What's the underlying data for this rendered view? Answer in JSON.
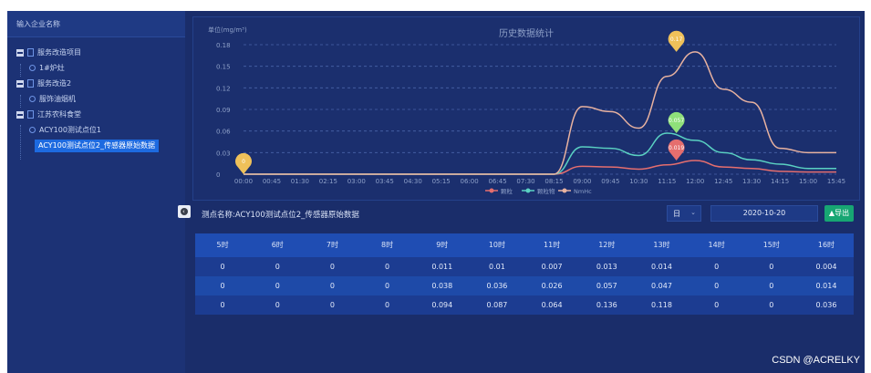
{
  "sidebar": {
    "search_placeholder": "输入企业名称",
    "tree": [
      {
        "label": "服务改造项目"
      },
      {
        "label": "1#炉灶"
      },
      {
        "label": "服务改造2"
      },
      {
        "label": "服饰油烟机"
      },
      {
        "label": "江苏农科食堂"
      },
      {
        "label": "ACY100测试点位1"
      },
      {
        "label": "ACY100测试点位2_传感器原始数据"
      }
    ]
  },
  "chart": {
    "title": "历史数据统计",
    "unit": "单位(mg/m³)",
    "legend": [
      "颗粒",
      "颗粒物",
      "NmHc"
    ],
    "colors": {
      "particle": "#e56e6e",
      "pm": "#5ad1c2",
      "nmhc": "#e8b2a0"
    }
  },
  "chart_data": {
    "type": "line",
    "x": [
      "00:00",
      "00:45",
      "01:30",
      "02:15",
      "03:00",
      "03:45",
      "04:30",
      "05:15",
      "06:00",
      "06:45",
      "07:30",
      "08:15",
      "09:00",
      "09:45",
      "10:30",
      "11:15",
      "12:00",
      "12:45",
      "13:30",
      "14:15",
      "15:00",
      "15:45"
    ],
    "ylim": [
      0,
      0.18
    ],
    "yticks": [
      "0",
      "0.03",
      "0.06",
      "0.09",
      "0.12",
      "0.15",
      "0.18"
    ],
    "series": [
      {
        "name": "颗粒",
        "values": [
          0,
          0,
          0,
          0,
          0,
          0,
          0,
          0,
          0,
          0,
          0,
          0,
          0.011,
          0.01,
          0.007,
          0.013,
          0.019,
          0.01,
          0.008,
          0.004,
          0.003,
          0.003
        ]
      },
      {
        "name": "颗粒物",
        "values": [
          0,
          0,
          0,
          0,
          0,
          0,
          0,
          0,
          0,
          0,
          0,
          0,
          0.038,
          0.036,
          0.026,
          0.057,
          0.047,
          0.03,
          0.02,
          0.014,
          0.008,
          0.008
        ]
      },
      {
        "name": "NmHc",
        "values": [
          0,
          0,
          0,
          0,
          0,
          0,
          0,
          0,
          0,
          0,
          0,
          0,
          0.094,
          0.087,
          0.064,
          0.136,
          0.17,
          0.118,
          0.1,
          0.036,
          0.03,
          0.03
        ]
      }
    ],
    "markers": [
      {
        "label": "0",
        "x": "00:00",
        "color": "#efc15a"
      },
      {
        "label": "0.17",
        "x": "11:30",
        "color": "#efc15a"
      },
      {
        "label": "0.057",
        "x": "11:30",
        "color": "#8fe07a"
      },
      {
        "label": "0.019",
        "x": "11:30",
        "color": "#e56e6e"
      }
    ]
  },
  "info": {
    "title": "测点名称:ACY100测试点位2_传感器原始数据",
    "period": "日",
    "date": "2020-10-20",
    "export_label": "导出"
  },
  "table": {
    "headers": [
      "5时",
      "6时",
      "7时",
      "8时",
      "9时",
      "10时",
      "11时",
      "12时",
      "13时",
      "14时",
      "15时",
      "16时"
    ],
    "rows": [
      [
        "0",
        "0",
        "0",
        "0",
        "0.011",
        "0.01",
        "0.007",
        "0.013",
        "0.014",
        "0",
        "0",
        "0.004"
      ],
      [
        "0",
        "0",
        "0",
        "0",
        "0.038",
        "0.036",
        "0.026",
        "0.057",
        "0.047",
        "0",
        "0",
        "0.014"
      ],
      [
        "0",
        "0",
        "0",
        "0",
        "0.094",
        "0.087",
        "0.064",
        "0.136",
        "0.118",
        "0",
        "0",
        "0.036"
      ]
    ]
  },
  "watermark": "CSDN @ACRELKY"
}
